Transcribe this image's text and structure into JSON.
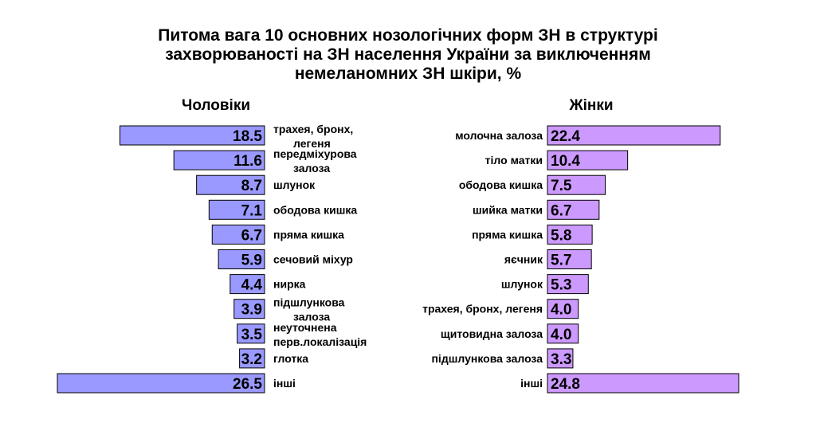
{
  "title_lines": [
    "Питома вага 10 основних нозологічних форм ЗН в структурі",
    "захворюваності на ЗН населення України за виключенням",
    "немеланомних ЗН шкіри, %"
  ],
  "colors": {
    "men_bar": "#9999ff",
    "women_bar": "#cc99ff",
    "bar_border": "#000000",
    "text": "#000000"
  },
  "chart_data": [
    {
      "type": "bar",
      "orientation": "horizontal",
      "direction": "leftward",
      "title": "Чоловіки",
      "categories": [
        [
          "трахея, бронх,",
          "легеня"
        ],
        [
          "передміхурова",
          "залоза"
        ],
        [
          "шлунок"
        ],
        [
          "ободова кишка"
        ],
        [
          "пряма кишка"
        ],
        [
          "сечовий міхур"
        ],
        [
          "нирка"
        ],
        [
          "підшлункова",
          "залоза"
        ],
        [
          "неуточнена",
          "перв.локалізація"
        ],
        [
          "глотка"
        ],
        [
          "інші"
        ]
      ],
      "values": [
        18.5,
        11.6,
        8.7,
        7.1,
        6.7,
        5.9,
        4.4,
        3.9,
        3.5,
        3.2,
        26.5
      ],
      "value_labels": [
        "18.5",
        "11.6",
        "8.7",
        "7.1",
        "6.7",
        "5.9",
        "4.4",
        "3.9",
        "3.5",
        "3.2",
        "26.5"
      ],
      "xlim": [
        0,
        26.5
      ],
      "grid": false,
      "legend": "none"
    },
    {
      "type": "bar",
      "orientation": "horizontal",
      "direction": "rightward",
      "title": "Жінки",
      "categories": [
        [
          "молочна залоза"
        ],
        [
          "тіло матки"
        ],
        [
          "ободова кишка"
        ],
        [
          "шийка матки"
        ],
        [
          "пряма кишка"
        ],
        [
          "яєчник"
        ],
        [
          "шлунок"
        ],
        [
          "трахея, бронх, легеня"
        ],
        [
          "щитовидна залоза"
        ],
        [
          "підшлункова залоза"
        ],
        [
          "інші"
        ]
      ],
      "values": [
        22.4,
        10.4,
        7.5,
        6.7,
        5.8,
        5.7,
        5.3,
        4.0,
        4.0,
        3.3,
        24.8
      ],
      "value_labels": [
        "22.4",
        "10.4",
        "7.5",
        "6.7",
        "5.8",
        "5.7",
        "5.3",
        "4.0",
        "4.0",
        "3.3",
        "24.8"
      ],
      "xlim": [
        0,
        24.8
      ],
      "grid": false,
      "legend": "none"
    }
  ]
}
